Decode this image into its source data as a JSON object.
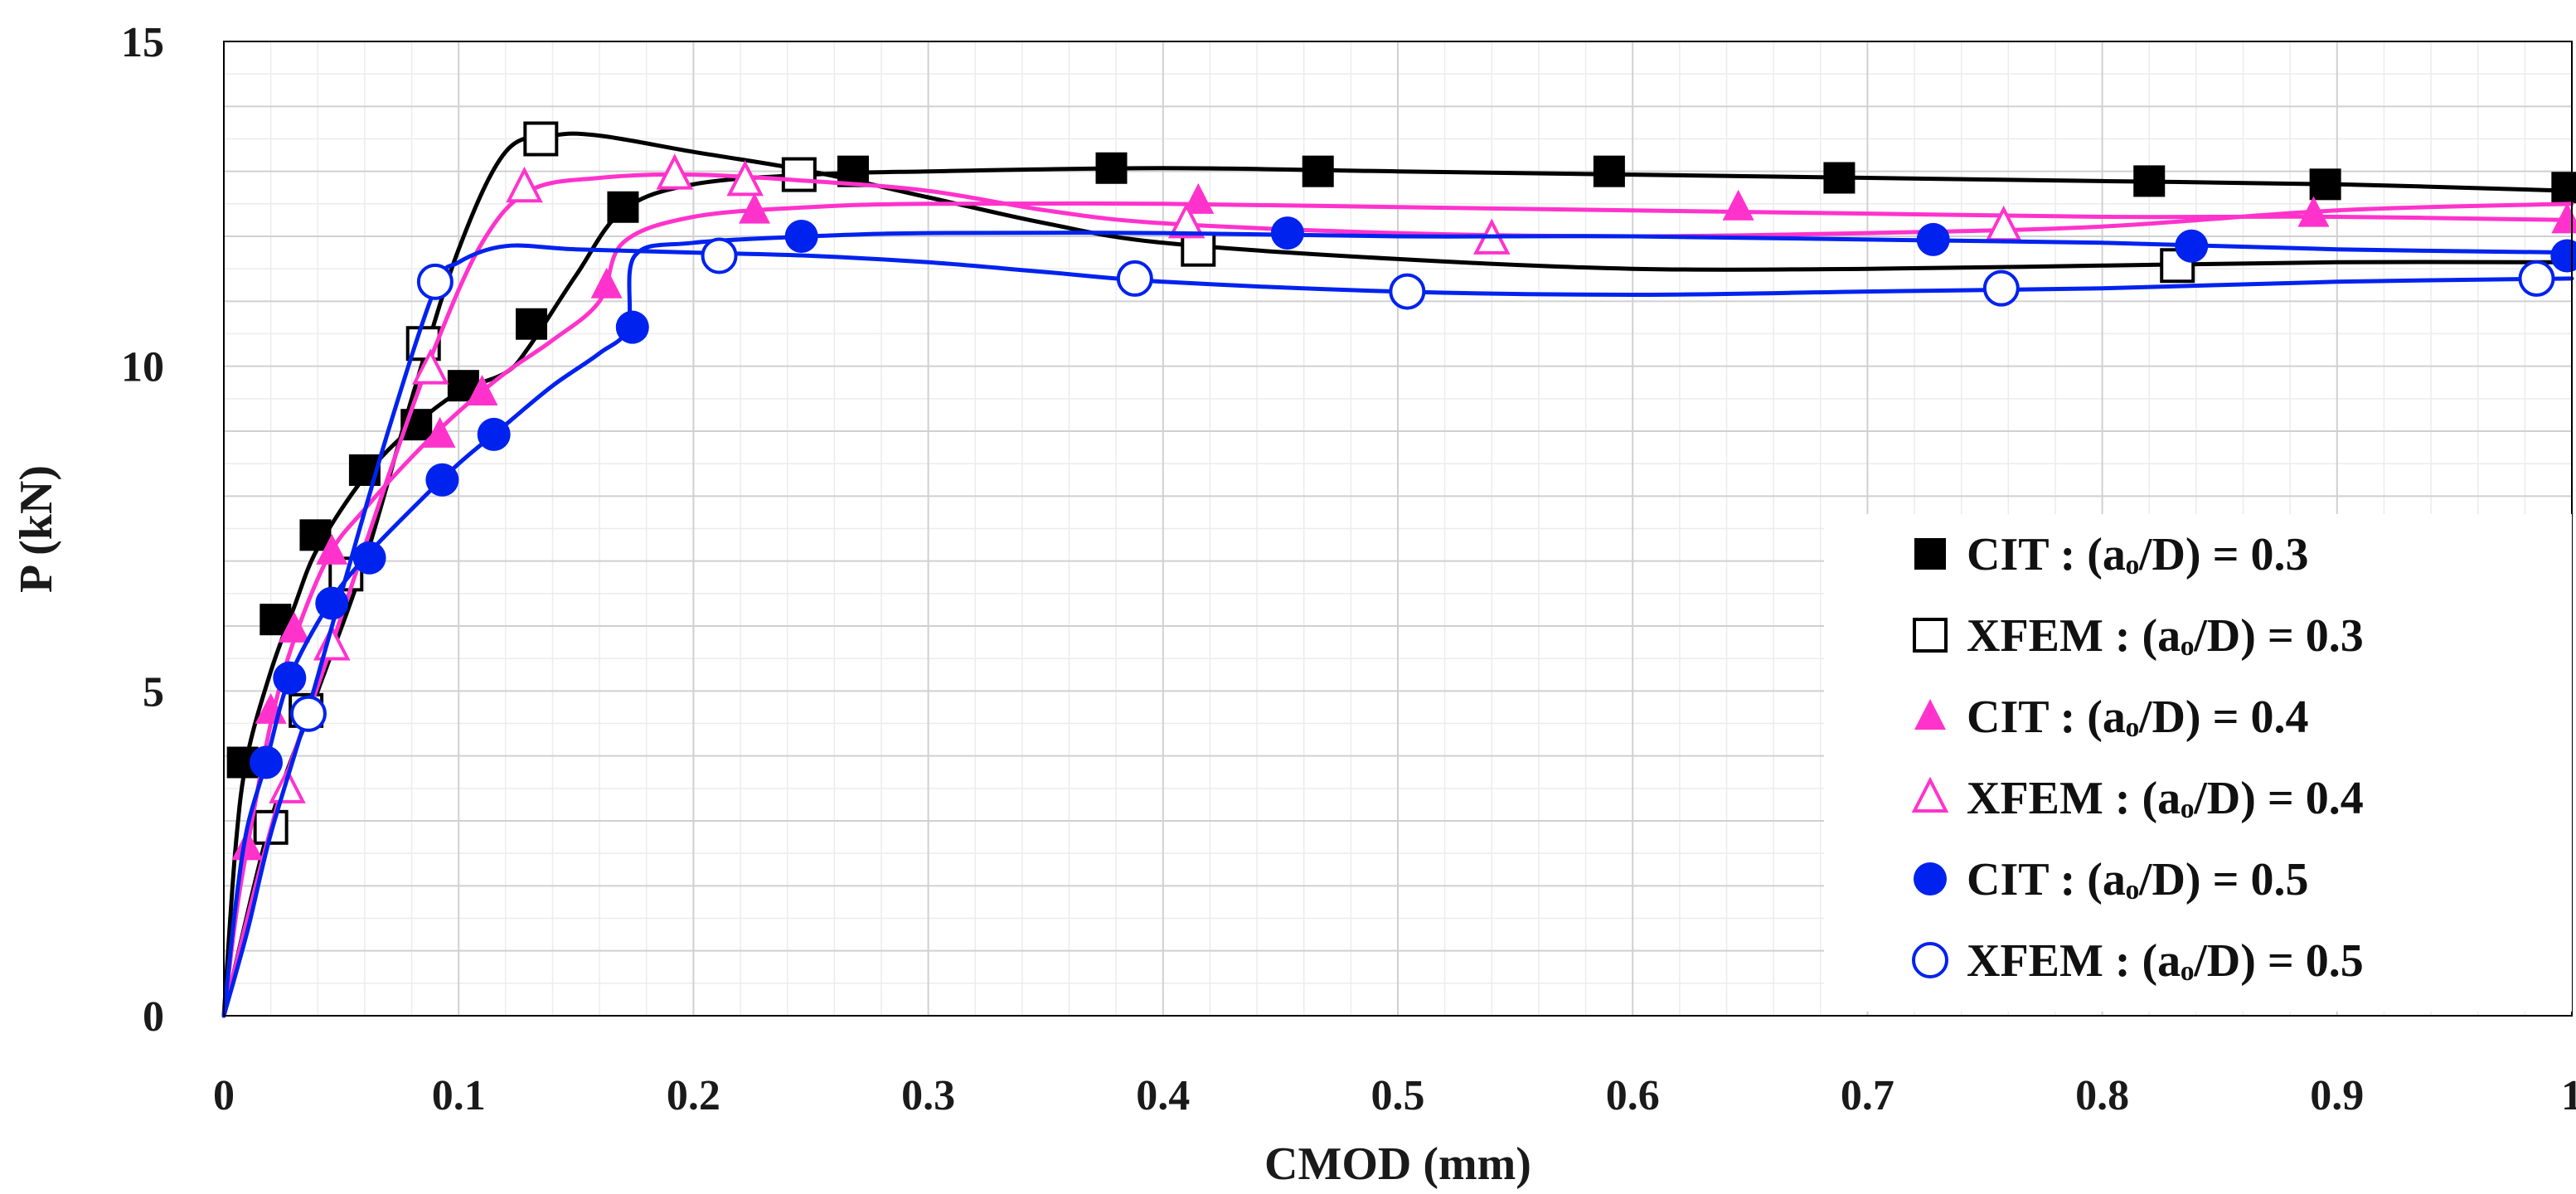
{
  "chart_data": {
    "type": "line",
    "title": "",
    "xlabel": "CMOD (mm)",
    "ylabel": "P (kN)",
    "xlim": [
      0,
      1
    ],
    "ylim": [
      0,
      15
    ],
    "x_ticks": [
      "0",
      "0.1",
      "0.2",
      "0.3",
      "0.4",
      "0.5",
      "0.6",
      "0.7",
      "0.8",
      "0.9",
      "1"
    ],
    "y_ticks": [
      "0",
      "5",
      "10",
      "15"
    ],
    "grid": true,
    "legend_position": "bottom-right",
    "series": [
      {
        "name": "CIT : (aₒ/D) = 0.3",
        "color": "#000000",
        "marker": "square-filled",
        "curve": [
          [
            0,
            0
          ],
          [
            0.005,
            2.6
          ],
          [
            0.01,
            4.0
          ],
          [
            0.02,
            5.3
          ],
          [
            0.03,
            6.3
          ],
          [
            0.04,
            7.2
          ],
          [
            0.06,
            8.3
          ],
          [
            0.08,
            9.05
          ],
          [
            0.1,
            9.6
          ],
          [
            0.12,
            9.9
          ],
          [
            0.13,
            10.3
          ],
          [
            0.15,
            11.4
          ],
          [
            0.17,
            12.4
          ],
          [
            0.2,
            12.8
          ],
          [
            0.25,
            12.95
          ],
          [
            0.3,
            13.0
          ],
          [
            0.4,
            13.05
          ],
          [
            0.5,
            13.0
          ],
          [
            0.6,
            12.95
          ],
          [
            0.7,
            12.9
          ],
          [
            0.8,
            12.85
          ],
          [
            0.9,
            12.8
          ],
          [
            1.0,
            12.7
          ]
        ],
        "points": [
          [
            0.008,
            3.9
          ],
          [
            0.022,
            6.1
          ],
          [
            0.039,
            7.4
          ],
          [
            0.06,
            8.4
          ],
          [
            0.082,
            9.1
          ],
          [
            0.102,
            9.7
          ],
          [
            0.131,
            10.65
          ],
          [
            0.17,
            12.45
          ],
          [
            0.268,
            13.0
          ],
          [
            0.378,
            13.05
          ],
          [
            0.466,
            13.0
          ],
          [
            0.59,
            13.0
          ],
          [
            0.688,
            12.9
          ],
          [
            0.82,
            12.85
          ],
          [
            0.895,
            12.8
          ],
          [
            0.998,
            12.75
          ]
        ]
      },
      {
        "name": "XFEM : (aₒ/D) = 0.3",
        "color": "#000000",
        "marker": "square-open",
        "curve": [
          [
            0,
            0
          ],
          [
            0.02,
            3.0
          ],
          [
            0.04,
            5.0
          ],
          [
            0.06,
            7.0
          ],
          [
            0.08,
            9.5
          ],
          [
            0.1,
            11.8
          ],
          [
            0.12,
            13.3
          ],
          [
            0.14,
            13.55
          ],
          [
            0.16,
            13.55
          ],
          [
            0.2,
            13.3
          ],
          [
            0.25,
            13.0
          ],
          [
            0.3,
            12.6
          ],
          [
            0.35,
            12.2
          ],
          [
            0.4,
            11.9
          ],
          [
            0.5,
            11.65
          ],
          [
            0.6,
            11.5
          ],
          [
            0.7,
            11.5
          ],
          [
            0.8,
            11.55
          ],
          [
            0.9,
            11.6
          ],
          [
            1.0,
            11.6
          ]
        ],
        "points": [
          [
            0.02,
            2.9
          ],
          [
            0.035,
            4.7
          ],
          [
            0.052,
            6.8
          ],
          [
            0.085,
            10.35
          ],
          [
            0.135,
            13.5
          ],
          [
            0.245,
            12.95
          ],
          [
            0.415,
            11.8
          ],
          [
            0.832,
            11.55
          ]
        ]
      },
      {
        "name": "CIT : (aₒ/D) = 0.4",
        "color": "#ff33cc",
        "marker": "triangle-filled",
        "curve": [
          [
            0,
            0
          ],
          [
            0.005,
            1.5
          ],
          [
            0.01,
            2.6
          ],
          [
            0.02,
            4.5
          ],
          [
            0.03,
            5.8
          ],
          [
            0.045,
            7.1
          ],
          [
            0.06,
            7.8
          ],
          [
            0.08,
            8.6
          ],
          [
            0.1,
            9.3
          ],
          [
            0.12,
            9.9
          ],
          [
            0.14,
            10.4
          ],
          [
            0.16,
            11.0
          ],
          [
            0.17,
            11.9
          ],
          [
            0.2,
            12.3
          ],
          [
            0.25,
            12.45
          ],
          [
            0.3,
            12.5
          ],
          [
            0.4,
            12.5
          ],
          [
            0.5,
            12.45
          ],
          [
            0.6,
            12.4
          ],
          [
            0.7,
            12.35
          ],
          [
            0.8,
            12.3
          ],
          [
            0.9,
            12.3
          ],
          [
            1.0,
            12.25
          ]
        ],
        "points": [
          [
            0.01,
            2.6
          ],
          [
            0.02,
            4.7
          ],
          [
            0.03,
            5.95
          ],
          [
            0.046,
            7.15
          ],
          [
            0.092,
            8.95
          ],
          [
            0.11,
            9.6
          ],
          [
            0.163,
            11.25
          ],
          [
            0.226,
            12.4
          ],
          [
            0.415,
            12.55
          ],
          [
            0.645,
            12.45
          ],
          [
            0.89,
            12.35
          ],
          [
            0.998,
            12.25
          ]
        ]
      },
      {
        "name": "XFEM : (aₒ/D) = 0.4",
        "color": "#ff33cc",
        "marker": "triangle-open",
        "curve": [
          [
            0,
            0
          ],
          [
            0.01,
            1.5
          ],
          [
            0.025,
            3.5
          ],
          [
            0.045,
            5.6
          ],
          [
            0.07,
            8.3
          ],
          [
            0.09,
            10.3
          ],
          [
            0.11,
            11.9
          ],
          [
            0.13,
            12.7
          ],
          [
            0.16,
            12.9
          ],
          [
            0.2,
            12.95
          ],
          [
            0.25,
            12.85
          ],
          [
            0.3,
            12.7
          ],
          [
            0.35,
            12.4
          ],
          [
            0.4,
            12.2
          ],
          [
            0.5,
            12.05
          ],
          [
            0.6,
            12.0
          ],
          [
            0.7,
            12.05
          ],
          [
            0.8,
            12.15
          ],
          [
            0.9,
            12.4
          ],
          [
            1.0,
            12.5
          ]
        ],
        "points": [
          [
            0.027,
            3.5
          ],
          [
            0.046,
            5.7
          ],
          [
            0.088,
            9.95
          ],
          [
            0.128,
            12.75
          ],
          [
            0.192,
            12.95
          ],
          [
            0.222,
            12.85
          ],
          [
            0.41,
            12.2
          ],
          [
            0.54,
            11.95
          ],
          [
            0.758,
            12.15
          ]
        ]
      },
      {
        "name": "CIT : (aₒ/D) = 0.5",
        "color": "#0022ee",
        "marker": "circle-filled",
        "curve": [
          [
            0,
            0
          ],
          [
            0.005,
            1.7
          ],
          [
            0.01,
            2.9
          ],
          [
            0.018,
            3.9
          ],
          [
            0.028,
            5.2
          ],
          [
            0.045,
            6.35
          ],
          [
            0.06,
            7.05
          ],
          [
            0.08,
            7.8
          ],
          [
            0.1,
            8.5
          ],
          [
            0.12,
            9.1
          ],
          [
            0.14,
            9.7
          ],
          [
            0.16,
            10.2
          ],
          [
            0.172,
            10.6
          ],
          [
            0.175,
            11.7
          ],
          [
            0.2,
            11.9
          ],
          [
            0.25,
            12.0
          ],
          [
            0.3,
            12.05
          ],
          [
            0.4,
            12.05
          ],
          [
            0.5,
            12.0
          ],
          [
            0.6,
            12.0
          ],
          [
            0.7,
            11.95
          ],
          [
            0.8,
            11.9
          ],
          [
            0.9,
            11.8
          ],
          [
            1.0,
            11.75
          ]
        ],
        "points": [
          [
            0.018,
            3.9
          ],
          [
            0.028,
            5.2
          ],
          [
            0.046,
            6.35
          ],
          [
            0.062,
            7.05
          ],
          [
            0.093,
            8.25
          ],
          [
            0.115,
            8.95
          ],
          [
            0.174,
            10.6
          ],
          [
            0.246,
            12.0
          ],
          [
            0.453,
            12.05
          ],
          [
            0.728,
            11.95
          ],
          [
            0.838,
            11.85
          ],
          [
            0.998,
            11.7
          ]
        ]
      },
      {
        "name": "XFEM : (aₒ/D) = 0.5",
        "color": "#0022ee",
        "marker": "circle-open",
        "curve": [
          [
            0,
            0
          ],
          [
            0.01,
            1.3
          ],
          [
            0.02,
            2.8
          ],
          [
            0.035,
            4.6
          ],
          [
            0.05,
            6.5
          ],
          [
            0.07,
            9.0
          ],
          [
            0.09,
            11.2
          ],
          [
            0.1,
            11.6
          ],
          [
            0.12,
            11.85
          ],
          [
            0.15,
            11.8
          ],
          [
            0.2,
            11.75
          ],
          [
            0.25,
            11.7
          ],
          [
            0.3,
            11.6
          ],
          [
            0.35,
            11.45
          ],
          [
            0.4,
            11.3
          ],
          [
            0.5,
            11.15
          ],
          [
            0.6,
            11.1
          ],
          [
            0.7,
            11.15
          ],
          [
            0.8,
            11.2
          ],
          [
            0.9,
            11.3
          ],
          [
            1.0,
            11.35
          ]
        ],
        "points": [
          [
            0.036,
            4.65
          ],
          [
            0.09,
            11.3
          ],
          [
            0.211,
            11.7
          ],
          [
            0.388,
            11.35
          ],
          [
            0.504,
            11.15
          ],
          [
            0.757,
            11.2
          ],
          [
            0.985,
            11.35
          ]
        ]
      }
    ]
  }
}
